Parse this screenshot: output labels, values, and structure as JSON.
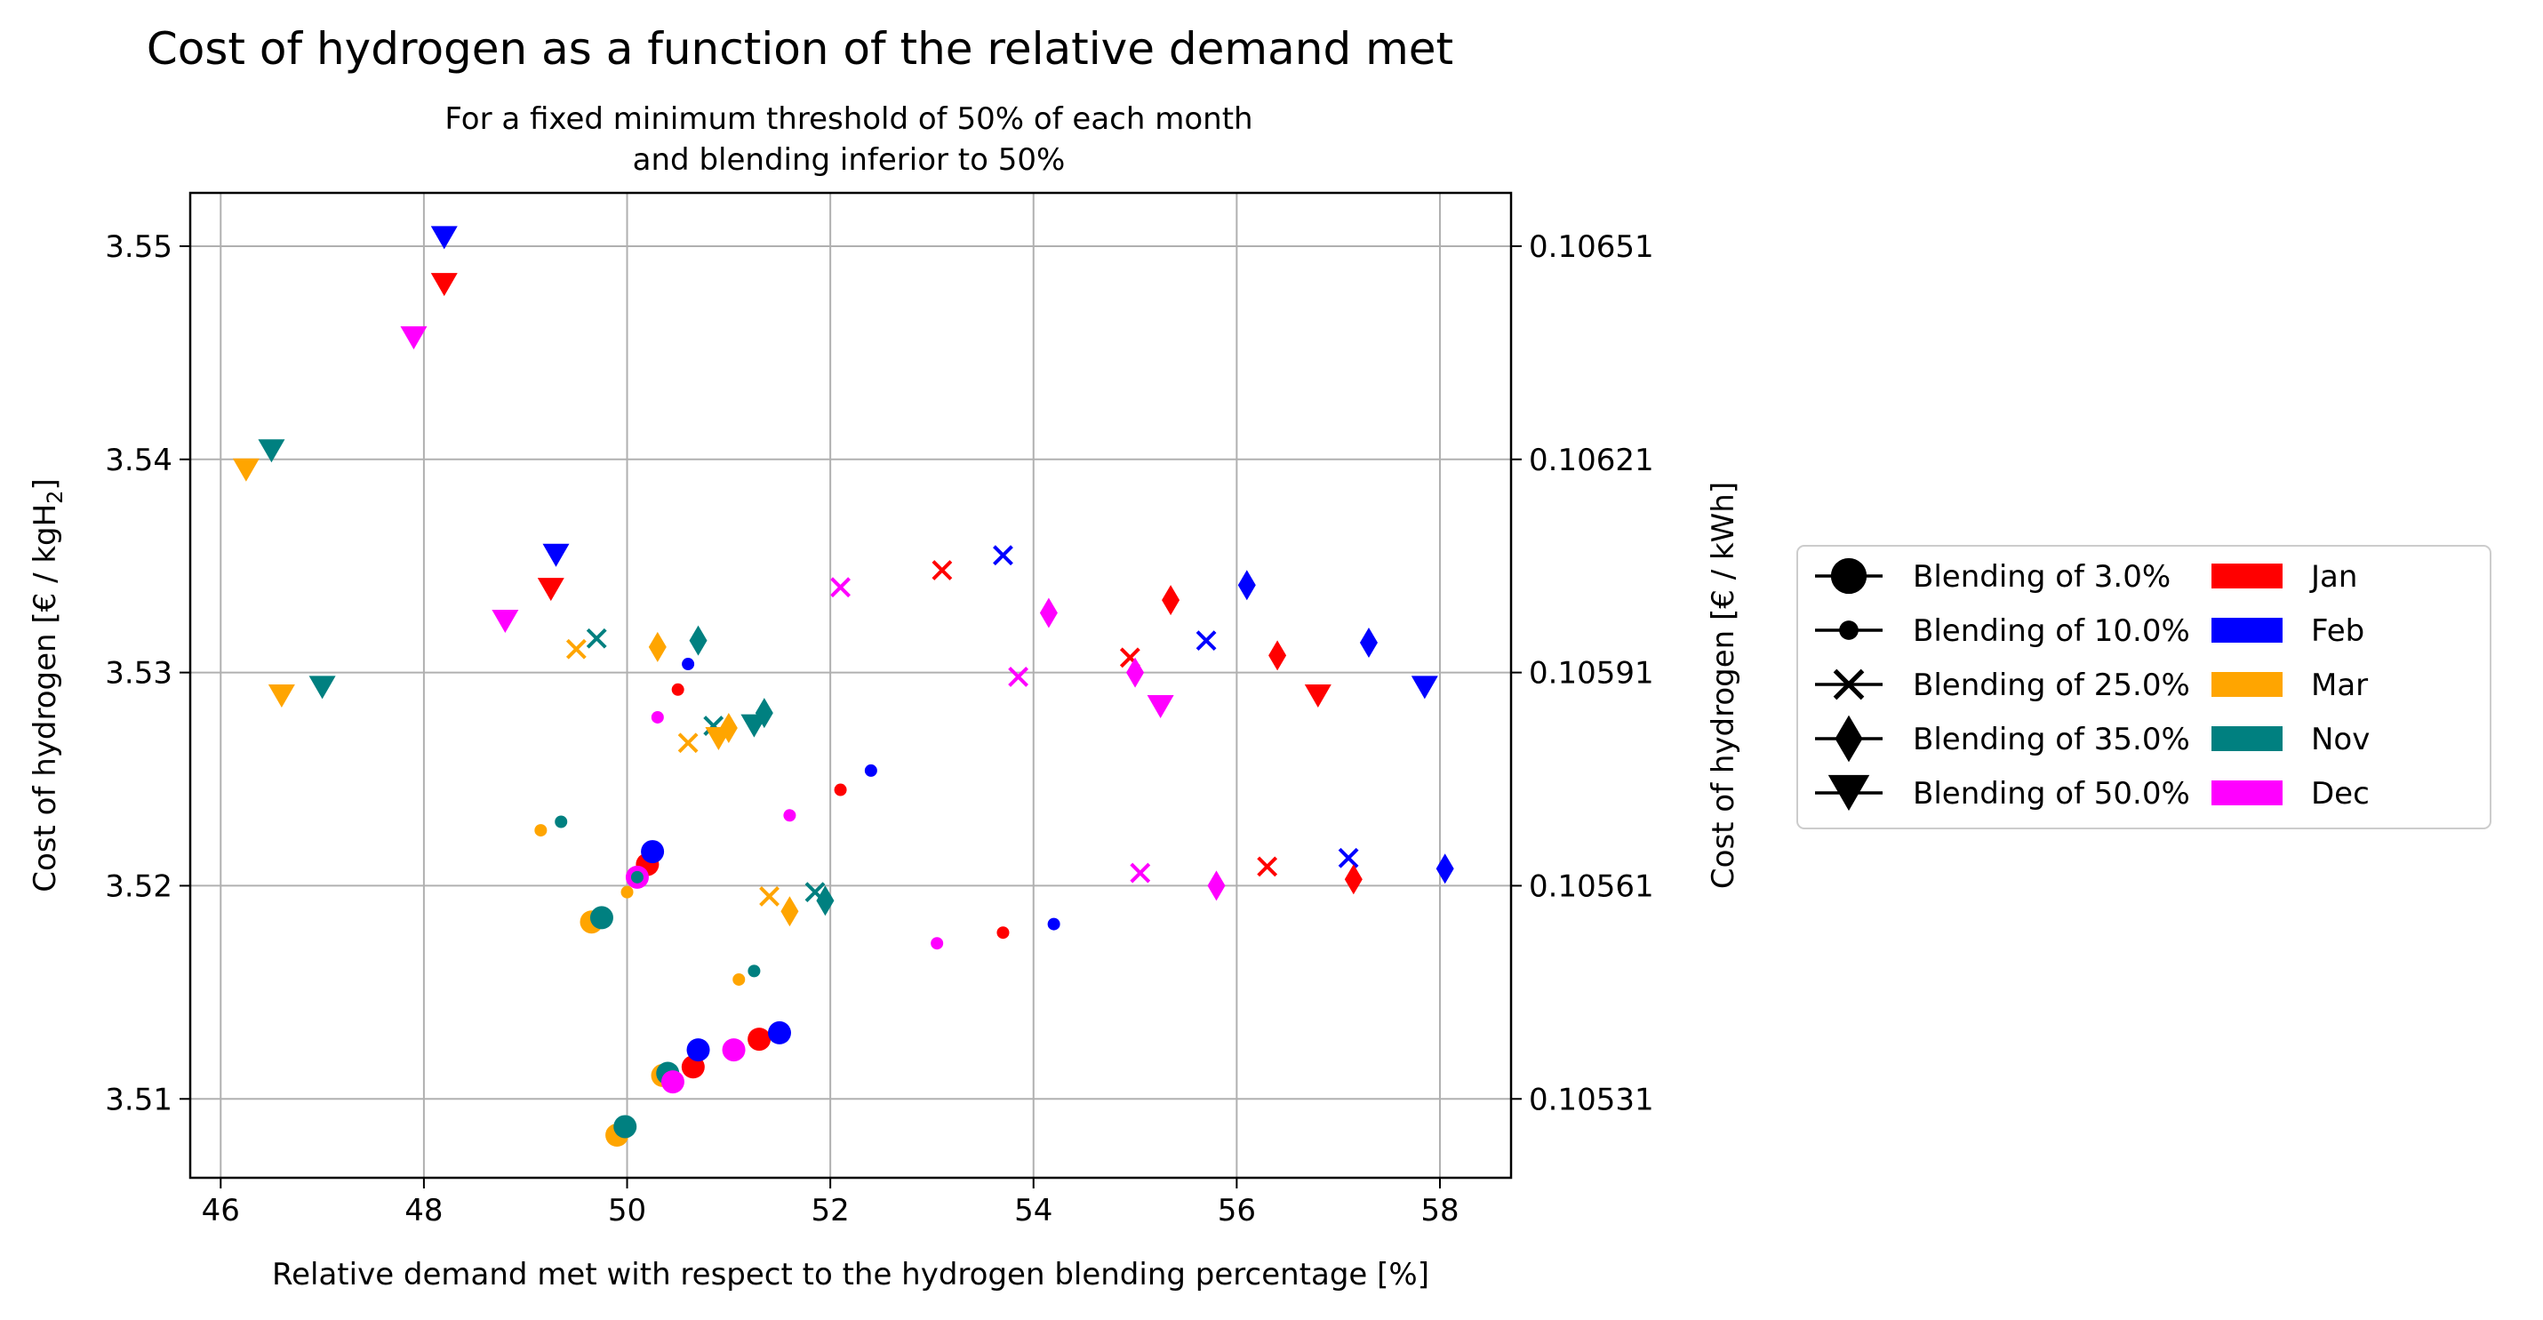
{
  "chart_data": {
    "type": "scatter",
    "title": "Cost of hydrogen as a function of the relative demand met",
    "subtitle_line1": "For a fixed minimum threshold of 50% of each month",
    "subtitle_line2": "and blending inferior to 50%",
    "xlabel": "Relative demand met with respect to the hydrogen blending percentage [%]",
    "ylabel_prefix": "Cost of hydrogen [€ / kgH",
    "ylabel_sub": "2",
    "ylabel_suffix": "]",
    "y2label": "Cost of hydrogen [€ / kWh]",
    "xlim": [
      45.7,
      58.7
    ],
    "ylim": [
      3.5063,
      3.5525
    ],
    "x_ticks": [
      46,
      48,
      50,
      52,
      54,
      56,
      58
    ],
    "x_tick_labels": [
      "46",
      "48",
      "50",
      "52",
      "54",
      "56",
      "58"
    ],
    "y_ticks": [
      3.51,
      3.52,
      3.53,
      3.54,
      3.55
    ],
    "y_tick_labels": [
      "3.51",
      "3.52",
      "3.53",
      "3.54",
      "3.55"
    ],
    "y2_ticks": [
      3.51,
      3.52,
      3.53,
      3.54,
      3.55
    ],
    "y2_tick_labels": [
      "0.10531",
      "0.10561",
      "0.10591",
      "0.10621",
      "0.10651"
    ],
    "grid": true,
    "legend_position": "outside-right",
    "months": [
      {
        "name": "Jan",
        "color": "#ff0000"
      },
      {
        "name": "Feb",
        "color": "#0000ff"
      },
      {
        "name": "Mar",
        "color": "#ffa500"
      },
      {
        "name": "Nov",
        "color": "#008080"
      },
      {
        "name": "Dec",
        "color": "#ff00ff"
      }
    ],
    "blendings": [
      {
        "name": "Blending of 3.0%",
        "marker": "circle-large"
      },
      {
        "name": "Blending of 10.0%",
        "marker": "circle-small"
      },
      {
        "name": "Blending of 25.0%",
        "marker": "x"
      },
      {
        "name": "Blending of 35.0%",
        "marker": "diamond"
      },
      {
        "name": "Blending of 50.0%",
        "marker": "triangle-down"
      }
    ],
    "points": [
      {
        "month": "Jan",
        "marker": "circle-large",
        "x": 50.2,
        "y": 3.521
      },
      {
        "month": "Jan",
        "marker": "circle-large",
        "x": 50.65,
        "y": 3.5115
      },
      {
        "month": "Jan",
        "marker": "circle-large",
        "x": 51.3,
        "y": 3.5128
      },
      {
        "month": "Feb",
        "marker": "circle-large",
        "x": 50.25,
        "y": 3.5216
      },
      {
        "month": "Feb",
        "marker": "circle-large",
        "x": 50.7,
        "y": 3.5123
      },
      {
        "month": "Feb",
        "marker": "circle-large",
        "x": 51.5,
        "y": 3.5131
      },
      {
        "month": "Mar",
        "marker": "circle-large",
        "x": 49.65,
        "y": 3.5183
      },
      {
        "month": "Mar",
        "marker": "circle-large",
        "x": 49.9,
        "y": 3.5083
      },
      {
        "month": "Mar",
        "marker": "circle-large",
        "x": 50.35,
        "y": 3.5111
      },
      {
        "month": "Nov",
        "marker": "circle-large",
        "x": 49.75,
        "y": 3.5185
      },
      {
        "month": "Nov",
        "marker": "circle-large",
        "x": 49.98,
        "y": 3.5087
      },
      {
        "month": "Nov",
        "marker": "circle-large",
        "x": 50.4,
        "y": 3.5112
      },
      {
        "month": "Dec",
        "marker": "circle-large",
        "x": 50.1,
        "y": 3.5204
      },
      {
        "month": "Dec",
        "marker": "circle-large",
        "x": 50.45,
        "y": 3.5108
      },
      {
        "month": "Dec",
        "marker": "circle-large",
        "x": 51.05,
        "y": 3.5123
      },
      {
        "month": "Jan",
        "marker": "circle-small",
        "x": 50.5,
        "y": 3.5292
      },
      {
        "month": "Jan",
        "marker": "circle-small",
        "x": 52.1,
        "y": 3.5245
      },
      {
        "month": "Jan",
        "marker": "circle-small",
        "x": 53.7,
        "y": 3.5178
      },
      {
        "month": "Feb",
        "marker": "circle-small",
        "x": 50.6,
        "y": 3.5304
      },
      {
        "month": "Feb",
        "marker": "circle-small",
        "x": 52.4,
        "y": 3.5254
      },
      {
        "month": "Feb",
        "marker": "circle-small",
        "x": 54.2,
        "y": 3.5182
      },
      {
        "month": "Mar",
        "marker": "circle-small",
        "x": 49.15,
        "y": 3.5226
      },
      {
        "month": "Mar",
        "marker": "circle-small",
        "x": 50.0,
        "y": 3.5197
      },
      {
        "month": "Mar",
        "marker": "circle-small",
        "x": 51.1,
        "y": 3.5156
      },
      {
        "month": "Nov",
        "marker": "circle-small",
        "x": 49.35,
        "y": 3.523
      },
      {
        "month": "Nov",
        "marker": "circle-small",
        "x": 50.1,
        "y": 3.5204
      },
      {
        "month": "Nov",
        "marker": "circle-small",
        "x": 51.25,
        "y": 3.516
      },
      {
        "month": "Dec",
        "marker": "circle-small",
        "x": 50.3,
        "y": 3.5279
      },
      {
        "month": "Dec",
        "marker": "circle-small",
        "x": 51.6,
        "y": 3.5233
      },
      {
        "month": "Dec",
        "marker": "circle-small",
        "x": 53.05,
        "y": 3.5173
      },
      {
        "month": "Jan",
        "marker": "x",
        "x": 53.1,
        "y": 3.5348
      },
      {
        "month": "Jan",
        "marker": "x",
        "x": 54.95,
        "y": 3.5307
      },
      {
        "month": "Jan",
        "marker": "x",
        "x": 56.3,
        "y": 3.5209
      },
      {
        "month": "Feb",
        "marker": "x",
        "x": 53.7,
        "y": 3.5355
      },
      {
        "month": "Feb",
        "marker": "x",
        "x": 55.7,
        "y": 3.5315
      },
      {
        "month": "Feb",
        "marker": "x",
        "x": 57.1,
        "y": 3.5213
      },
      {
        "month": "Mar",
        "marker": "x",
        "x": 49.5,
        "y": 3.5311
      },
      {
        "month": "Mar",
        "marker": "x",
        "x": 50.6,
        "y": 3.5267
      },
      {
        "month": "Mar",
        "marker": "x",
        "x": 51.4,
        "y": 3.5195
      },
      {
        "month": "Nov",
        "marker": "x",
        "x": 49.7,
        "y": 3.5316
      },
      {
        "month": "Nov",
        "marker": "x",
        "x": 50.85,
        "y": 3.5275
      },
      {
        "month": "Nov",
        "marker": "x",
        "x": 51.85,
        "y": 3.5197
      },
      {
        "month": "Dec",
        "marker": "x",
        "x": 52.1,
        "y": 3.534
      },
      {
        "month": "Dec",
        "marker": "x",
        "x": 53.85,
        "y": 3.5298
      },
      {
        "month": "Dec",
        "marker": "x",
        "x": 55.05,
        "y": 3.5206
      },
      {
        "month": "Jan",
        "marker": "diamond",
        "x": 55.35,
        "y": 3.5334
      },
      {
        "month": "Jan",
        "marker": "diamond",
        "x": 56.4,
        "y": 3.5308
      },
      {
        "month": "Jan",
        "marker": "diamond",
        "x": 57.15,
        "y": 3.5203
      },
      {
        "month": "Feb",
        "marker": "diamond",
        "x": 56.1,
        "y": 3.5341
      },
      {
        "month": "Feb",
        "marker": "diamond",
        "x": 57.3,
        "y": 3.5314
      },
      {
        "month": "Feb",
        "marker": "diamond",
        "x": 58.05,
        "y": 3.5208
      },
      {
        "month": "Mar",
        "marker": "diamond",
        "x": 50.3,
        "y": 3.5312
      },
      {
        "month": "Mar",
        "marker": "diamond",
        "x": 51.0,
        "y": 3.5274
      },
      {
        "month": "Mar",
        "marker": "diamond",
        "x": 51.6,
        "y": 3.5188
      },
      {
        "month": "Nov",
        "marker": "diamond",
        "x": 50.7,
        "y": 3.5315
      },
      {
        "month": "Nov",
        "marker": "diamond",
        "x": 51.35,
        "y": 3.5281
      },
      {
        "month": "Nov",
        "marker": "diamond",
        "x": 51.95,
        "y": 3.5193
      },
      {
        "month": "Dec",
        "marker": "diamond",
        "x": 54.15,
        "y": 3.5328
      },
      {
        "month": "Dec",
        "marker": "diamond",
        "x": 55.0,
        "y": 3.53
      },
      {
        "month": "Dec",
        "marker": "diamond",
        "x": 55.8,
        "y": 3.52
      },
      {
        "month": "Jan",
        "marker": "triangle-down",
        "x": 48.2,
        "y": 3.5482
      },
      {
        "month": "Jan",
        "marker": "triangle-down",
        "x": 49.25,
        "y": 3.5339
      },
      {
        "month": "Jan",
        "marker": "triangle-down",
        "x": 56.8,
        "y": 3.5289
      },
      {
        "month": "Feb",
        "marker": "triangle-down",
        "x": 48.2,
        "y": 3.5504
      },
      {
        "month": "Feb",
        "marker": "triangle-down",
        "x": 49.3,
        "y": 3.5355
      },
      {
        "month": "Feb",
        "marker": "triangle-down",
        "x": 57.85,
        "y": 3.5293
      },
      {
        "month": "Mar",
        "marker": "triangle-down",
        "x": 46.25,
        "y": 3.5395
      },
      {
        "month": "Mar",
        "marker": "triangle-down",
        "x": 46.6,
        "y": 3.5289
      },
      {
        "month": "Mar",
        "marker": "triangle-down",
        "x": 50.9,
        "y": 3.5269
      },
      {
        "month": "Nov",
        "marker": "triangle-down",
        "x": 46.5,
        "y": 3.5404
      },
      {
        "month": "Nov",
        "marker": "triangle-down",
        "x": 47.0,
        "y": 3.5293
      },
      {
        "month": "Nov",
        "marker": "triangle-down",
        "x": 51.25,
        "y": 3.5275
      },
      {
        "month": "Dec",
        "marker": "triangle-down",
        "x": 47.9,
        "y": 3.5457
      },
      {
        "month": "Dec",
        "marker": "triangle-down",
        "x": 48.8,
        "y": 3.5324
      },
      {
        "month": "Dec",
        "marker": "triangle-down",
        "x": 55.25,
        "y": 3.5284
      }
    ]
  }
}
